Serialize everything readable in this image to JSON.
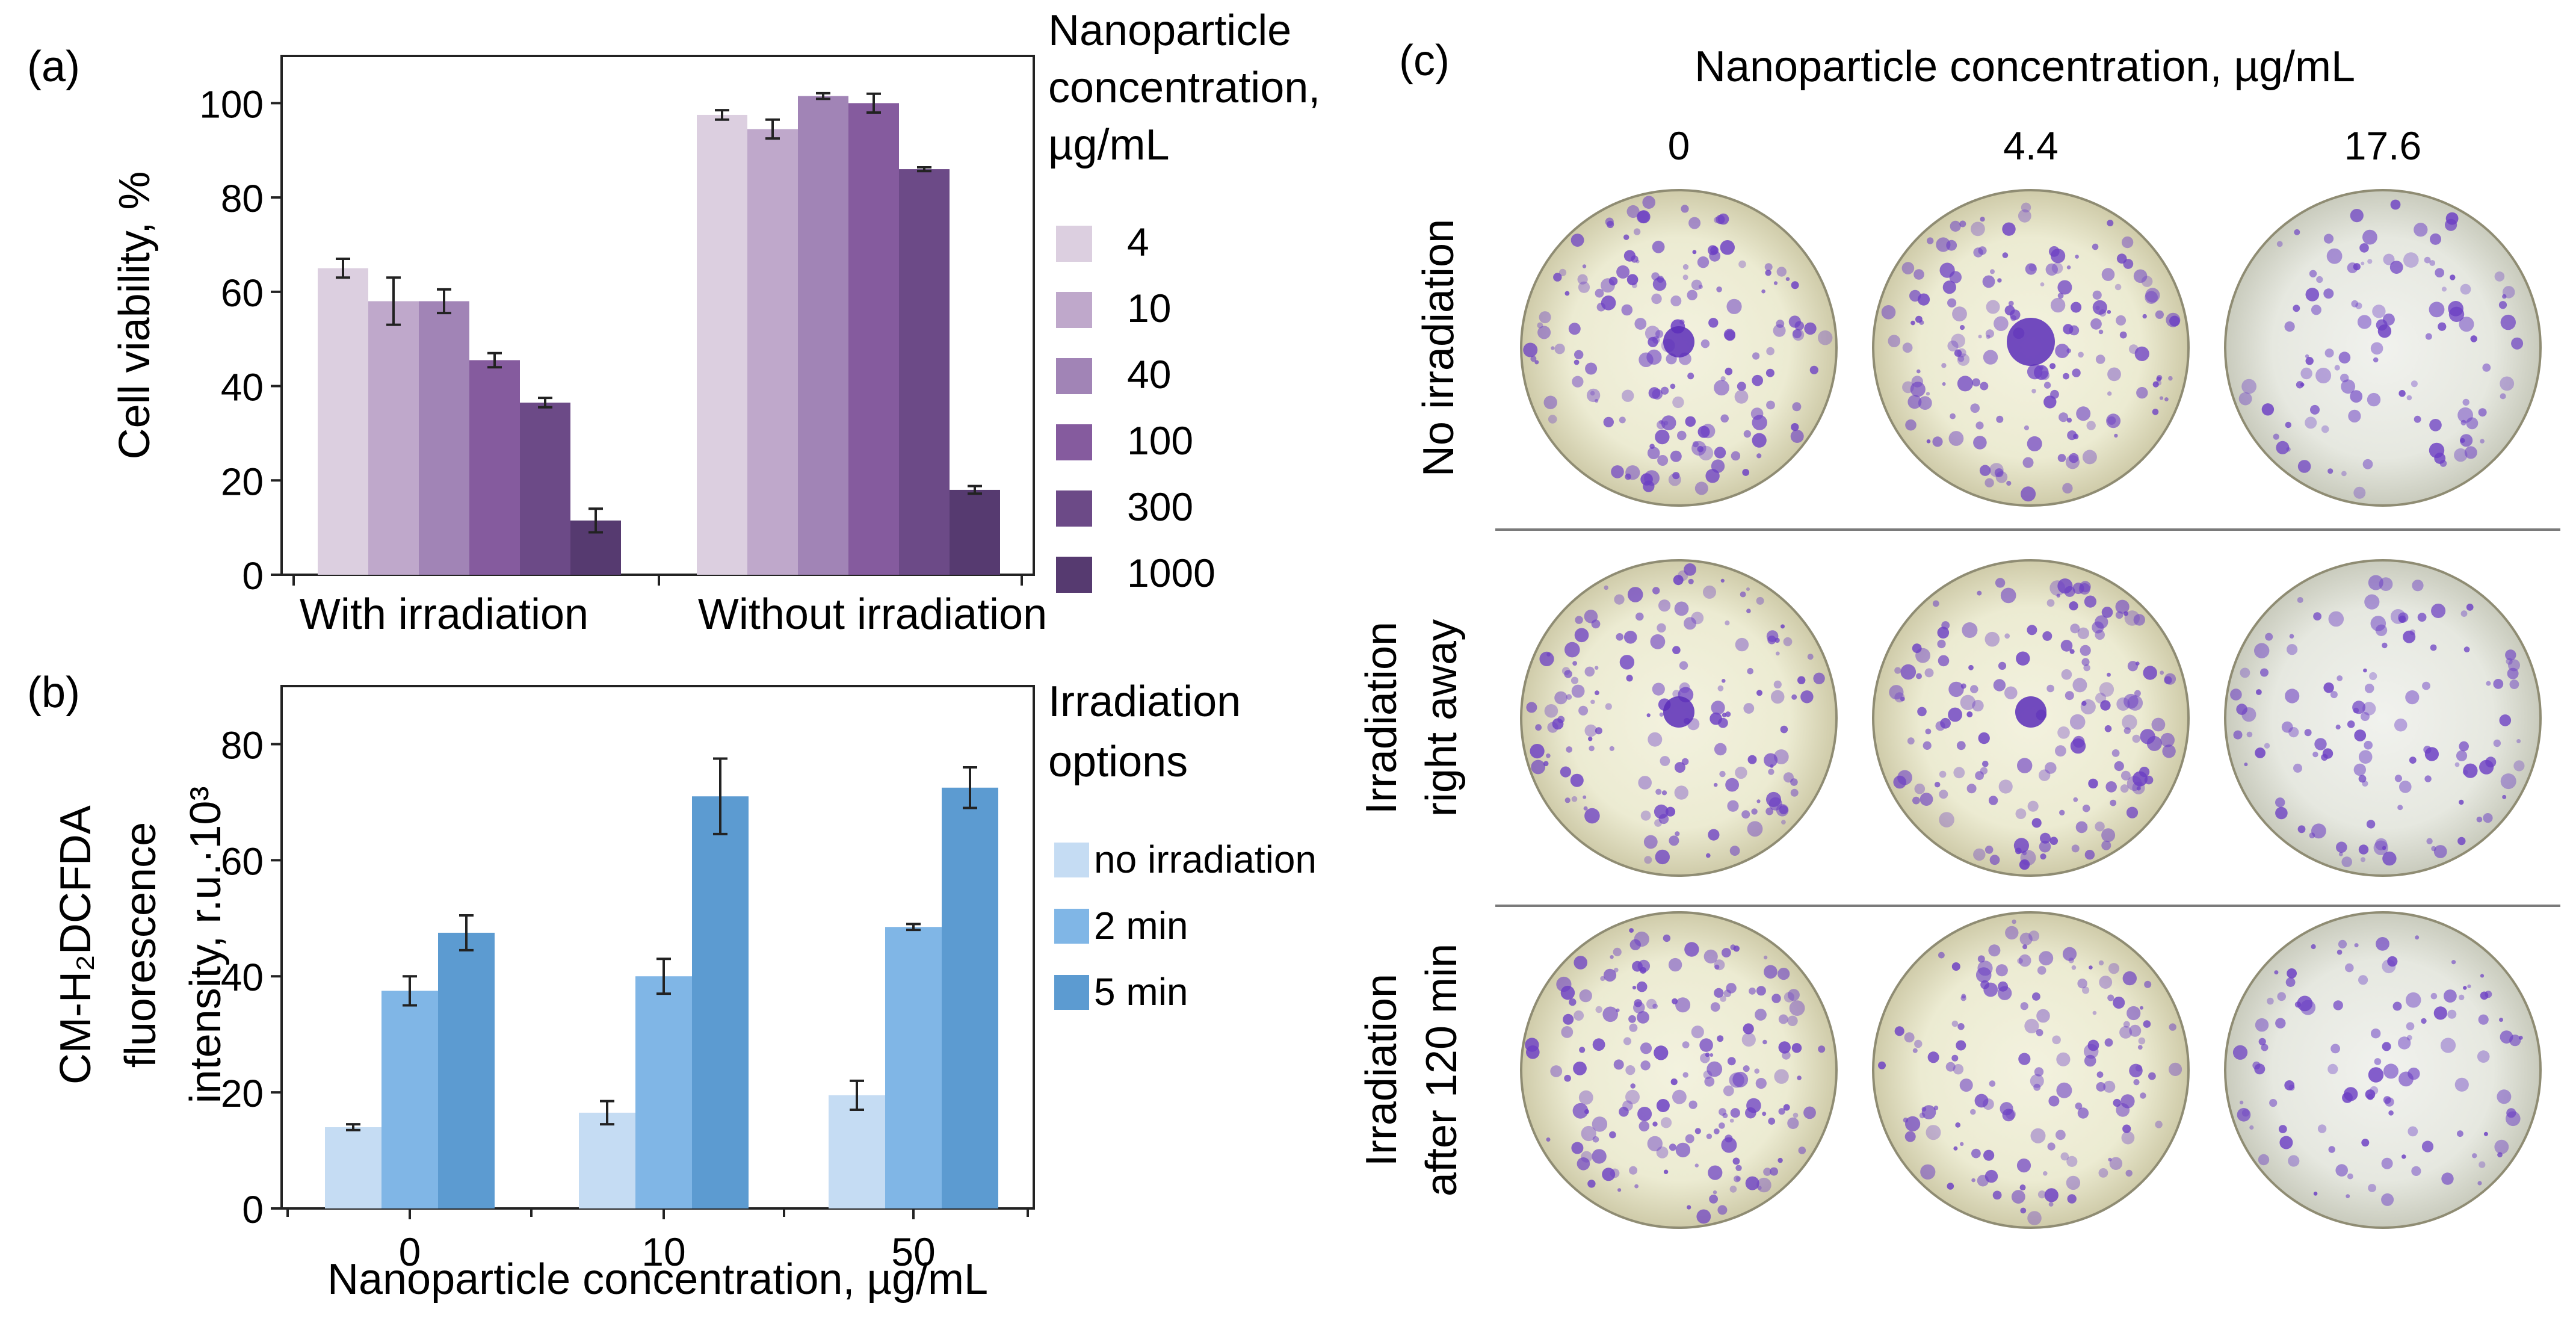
{
  "panels": {
    "a": {
      "label": "(a)"
    },
    "b": {
      "label": "(b)"
    },
    "c": {
      "label": "(c)"
    }
  },
  "chart_data": [
    {
      "type": "bar",
      "panel": "(a)",
      "title": "",
      "xlabel": "",
      "ylabel": "Cell viability, %",
      "ylim": [
        0,
        110
      ],
      "yticks": [
        0,
        20,
        40,
        60,
        80,
        100
      ],
      "categories": [
        "With irradiation",
        "Without irradiation"
      ],
      "legend_title_lines": [
        "Nanoparticle",
        "concentration,",
        "µg/mL"
      ],
      "legend_position": "right",
      "series": [
        {
          "name": "4",
          "color": "#dccfe0",
          "values": [
            65,
            97.5
          ],
          "errors": [
            2,
            1
          ]
        },
        {
          "name": "10",
          "color": "#bfa8cb",
          "values": [
            58,
            94.5
          ],
          "errors": [
            5,
            2
          ]
        },
        {
          "name": "40",
          "color": "#a184b6",
          "values": [
            58,
            101.5
          ],
          "errors": [
            2.5,
            0.6
          ]
        },
        {
          "name": "100",
          "color": "#855b9e",
          "values": [
            45.5,
            100
          ],
          "errors": [
            1.5,
            2
          ]
        },
        {
          "name": "300",
          "color": "#6c4a87",
          "values": [
            36.5,
            86
          ],
          "errors": [
            1,
            0.4
          ]
        },
        {
          "name": "1000",
          "color": "#563a70",
          "values": [
            11.5,
            18
          ],
          "errors": [
            2.5,
            0.8
          ]
        }
      ]
    },
    {
      "type": "bar",
      "panel": "(b)",
      "title": "",
      "xlabel": "Nanoparticle concentration, µg/mL",
      "ylabel_lines": [
        "CM-H₂DCFDA",
        "fluorescence",
        "intensity, r.u.·10³"
      ],
      "ylim": [
        0,
        90
      ],
      "yticks": [
        0,
        20,
        40,
        60,
        80
      ],
      "categories": [
        "0",
        "10",
        "50"
      ],
      "legend_title_lines": [
        "Irradiation",
        "options"
      ],
      "legend_position": "right",
      "series": [
        {
          "name": "no irradiation",
          "color": "#c5dcf3",
          "values": [
            14,
            16.5,
            19.5
          ],
          "errors": [
            0.5,
            2,
            2.5
          ]
        },
        {
          "name": "2 min",
          "color": "#80b6e6",
          "values": [
            37.5,
            40,
            48.5
          ],
          "errors": [
            2.5,
            3,
            0.5
          ]
        },
        {
          "name": "5 min",
          "color": "#5c9bd1",
          "values": [
            47.5,
            71,
            72.5
          ],
          "errors": [
            3,
            6.5,
            3.5
          ]
        }
      ]
    }
  ],
  "panel_c": {
    "header": "Nanoparticle concentration, µg/mL",
    "columns": [
      "0",
      "4.4",
      "17.6"
    ],
    "rows": [
      {
        "lines": [
          "No irradiation"
        ],
        "density": [
          0.7,
          0.7,
          0.45
        ]
      },
      {
        "lines": [
          "Irradiation",
          "right away"
        ],
        "density": [
          0.65,
          0.7,
          0.5
        ]
      },
      {
        "lines": [
          "Irradiation",
          "after 120 min"
        ],
        "density": [
          0.75,
          0.6,
          0.45
        ]
      }
    ],
    "colors": {
      "dish_center": "#f2f1dc",
      "dish_edge": "#d2cfad",
      "stain": "#6c3fc4",
      "separator": "#7a7a7a"
    }
  }
}
